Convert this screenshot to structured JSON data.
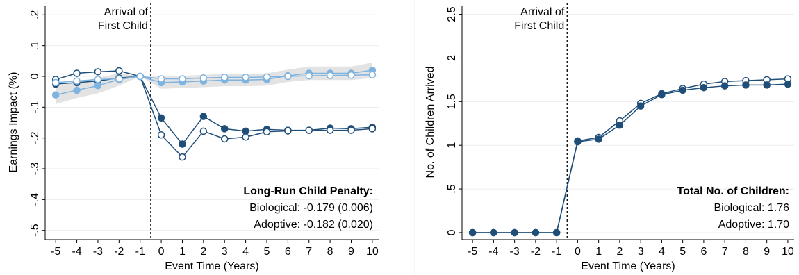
{
  "chart_data": [
    {
      "type": "line",
      "xlabel": "Event Time (Years)",
      "ylabel": "Earnings Impact (%)",
      "xlim": [
        -5.5,
        10.3
      ],
      "ylim": [
        -0.53,
        0.23
      ],
      "x": [
        -5,
        -4,
        -3,
        -2,
        -1,
        0,
        1,
        2,
        3,
        4,
        5,
        6,
        7,
        8,
        9,
        10
      ],
      "xticks": [
        "-5",
        "-4",
        "-3",
        "-2",
        "-1",
        "0",
        "1",
        "2",
        "3",
        "4",
        "5",
        "6",
        "7",
        "8",
        "9",
        "10"
      ],
      "yticks": [
        {
          "value": 0.2,
          "label": ".2"
        },
        {
          "value": 0.1,
          "label": ".1"
        },
        {
          "value": 0,
          "label": "0"
        },
        {
          "value": -0.1,
          "label": "-.1"
        },
        {
          "value": -0.2,
          "label": "-.2"
        },
        {
          "value": -0.3,
          "label": "-.3"
        },
        {
          "value": -0.4,
          "label": "-.4"
        },
        {
          "value": -0.5,
          "label": "-.5"
        }
      ],
      "event_line": {
        "x": -0.5,
        "label_line1": "Arrival of",
        "label_line2": "First Child"
      },
      "series": [
        {
          "marker": "filled",
          "color": "#1f4e79",
          "values": [
            -0.025,
            -0.02,
            -0.015,
            -0.005,
            0,
            -0.135,
            -0.22,
            -0.13,
            -0.17,
            -0.178,
            -0.172,
            -0.175,
            -0.175,
            -0.168,
            -0.17,
            -0.165
          ]
        },
        {
          "marker": "hollow",
          "color": "#1f4e79",
          "values": [
            -0.01,
            0.01,
            0.015,
            0.018,
            0,
            -0.19,
            -0.262,
            -0.178,
            -0.203,
            -0.197,
            -0.18,
            -0.177,
            -0.175,
            -0.175,
            -0.175,
            -0.17
          ]
        },
        {
          "marker": "filled",
          "color": "#7fb3e0",
          "values": [
            -0.06,
            -0.045,
            -0.03,
            -0.01,
            0,
            -0.02,
            -0.018,
            -0.015,
            -0.012,
            -0.012,
            -0.01,
            0.002,
            0.01,
            0.01,
            0.01,
            0.02
          ]
        },
        {
          "marker": "hollow",
          "color": "#7fb3e0",
          "values": [
            -0.02,
            -0.015,
            -0.01,
            -0.008,
            0,
            -0.008,
            -0.008,
            -0.005,
            -0.003,
            -0.003,
            -0.002,
            0,
            0.002,
            0.003,
            0.004,
            0.005
          ]
        }
      ],
      "bands": [
        {
          "color": "#d9d9d9",
          "lower": [
            -0.09,
            -0.07,
            -0.055,
            -0.03,
            0,
            -0.04,
            -0.038,
            -0.035,
            -0.032,
            -0.032,
            -0.03,
            -0.018,
            -0.012,
            -0.012,
            -0.012,
            -0.005
          ],
          "upper": [
            -0.03,
            -0.02,
            -0.005,
            0.01,
            0,
            0.0,
            0.002,
            0.005,
            0.008,
            0.008,
            0.01,
            0.022,
            0.032,
            0.032,
            0.032,
            0.045
          ]
        }
      ],
      "annotation": {
        "title": "Long-Run Child Penalty:",
        "lines": [
          "Biological: -0.179 (0.006)",
          "Adoptive: -0.182 (0.020)"
        ]
      }
    },
    {
      "type": "line",
      "xlabel": "Event Time (Years)",
      "ylabel": "No. of Children Arrived",
      "xlim": [
        -5.5,
        10.3
      ],
      "ylim": [
        -0.08,
        2.6
      ],
      "x": [
        -5,
        -4,
        -3,
        -2,
        -1,
        0,
        1,
        2,
        3,
        4,
        5,
        6,
        7,
        8,
        9,
        10
      ],
      "xticks": [
        "-5",
        "-4",
        "-3",
        "-2",
        "-1",
        "0",
        "1",
        "2",
        "3",
        "4",
        "5",
        "6",
        "7",
        "8",
        "9",
        "10"
      ],
      "yticks": [
        {
          "value": 2.5,
          "label": "2.5"
        },
        {
          "value": 2,
          "label": "2"
        },
        {
          "value": 1.5,
          "label": "1.5"
        },
        {
          "value": 1,
          "label": "1"
        },
        {
          "value": 0.5,
          "label": ".5"
        },
        {
          "value": 0,
          "label": "0"
        }
      ],
      "event_line": {
        "x": -0.5,
        "label_line1": "Arrival of",
        "label_line2": "First Child"
      },
      "series": [
        {
          "marker": "hollow",
          "color": "#1f4e79",
          "values": [
            0,
            0,
            0,
            0,
            0,
            1.05,
            1.09,
            1.28,
            1.48,
            1.59,
            1.65,
            1.7,
            1.73,
            1.74,
            1.75,
            1.76
          ]
        },
        {
          "marker": "filled",
          "color": "#1f4e79",
          "values": [
            0,
            0,
            0,
            0,
            0,
            1.04,
            1.07,
            1.23,
            1.45,
            1.58,
            1.63,
            1.66,
            1.68,
            1.69,
            1.69,
            1.7
          ]
        }
      ],
      "bands": [],
      "annotation": {
        "title": "Total No. of Children:",
        "lines": [
          "Biological:  1.76",
          "Adoptive:  1.70"
        ]
      }
    }
  ]
}
